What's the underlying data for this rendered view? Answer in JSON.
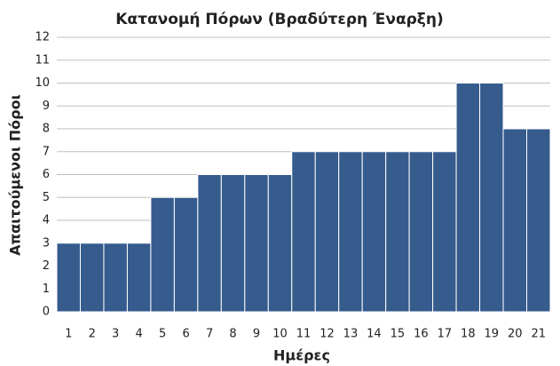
{
  "chart_data": {
    "type": "bar",
    "title": "Κατανομή Πόρων (Βραδύτερη Έναρξη)",
    "xlabel": "Ημέρες",
    "ylabel": "Απαιτούμενοι Πόροι",
    "categories": [
      1,
      2,
      3,
      4,
      5,
      6,
      7,
      8,
      9,
      10,
      11,
      12,
      13,
      14,
      15,
      16,
      17,
      18,
      19,
      20,
      21
    ],
    "values": [
      3,
      3,
      3,
      3,
      5,
      5,
      6,
      6,
      6,
      6,
      7,
      7,
      7,
      7,
      7,
      7,
      7,
      10,
      10,
      8,
      8
    ],
    "color": "#365b8d",
    "ylim": [
      0,
      12
    ],
    "yticks": [
      0,
      1,
      2,
      3,
      4,
      5,
      6,
      7,
      8,
      9,
      10,
      11,
      12
    ],
    "grid": true
  }
}
